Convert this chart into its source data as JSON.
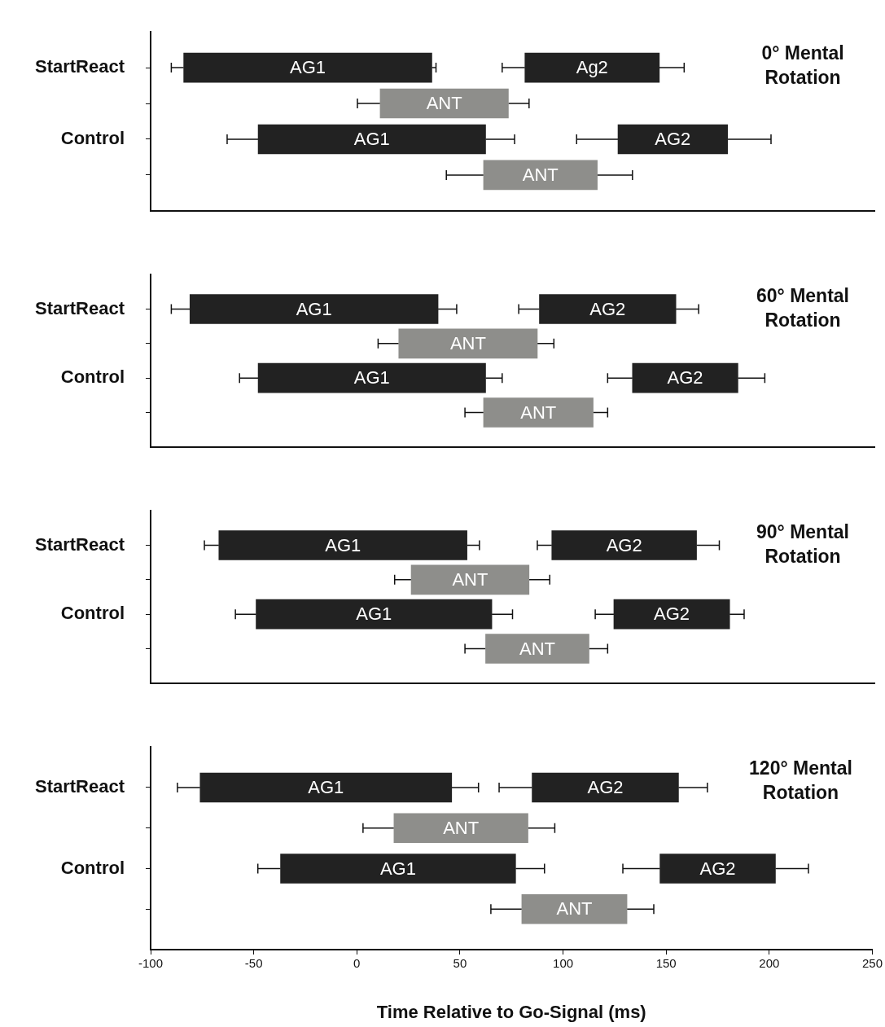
{
  "chart_data": [
    {
      "type": "bar",
      "orientation": "horizontal",
      "title": "0° Mental Rotation",
      "categories": [
        "StartReact",
        null,
        "Control",
        null
      ],
      "xlim": [
        -100,
        250
      ],
      "xticks": [
        -100,
        -50,
        0,
        50,
        100,
        150,
        200,
        250
      ],
      "tick_labels": "y",
      "series": [
        {
          "color": "#222222",
          "base": [
            -84,
            null,
            -48,
            null
          ],
          "values": [
            120,
            null,
            110,
            null
          ],
          "errors": [
            [
              -90,
              38
            ],
            null,
            [
              -63,
              76
            ],
            null
          ],
          "value_labels": [
            "AG1",
            null,
            "AG1",
            null
          ]
        },
        {
          "color": "#222222",
          "base": [
            81,
            null,
            126,
            null
          ],
          "values": [
            65,
            null,
            53,
            null
          ],
          "errors": [
            [
              70,
              158
            ],
            null,
            [
              106,
              200
            ],
            null
          ],
          "value_labels": [
            "Ag2",
            null,
            "AG2",
            null
          ]
        },
        {
          "color": "#8e8e8b",
          "base": [
            null,
            11,
            null,
            61
          ],
          "values": [
            null,
            62,
            null,
            55
          ],
          "errors": [
            null,
            [
              0,
              83
            ],
            null,
            [
              43,
              133
            ]
          ],
          "value_labels": [
            null,
            "ANT",
            null,
            "ANT"
          ]
        }
      ]
    },
    {
      "type": "bar",
      "orientation": "horizontal",
      "title": "60° Mental Rotation",
      "categories": [
        "StartReact",
        null,
        "Control",
        null
      ],
      "xlim": [
        -100,
        250
      ],
      "xticks": [
        -100,
        -50,
        0,
        50,
        100,
        150,
        200,
        250
      ],
      "tick_labels": "y",
      "series": [
        {
          "color": "#222222",
          "base": [
            -81,
            null,
            -48,
            null
          ],
          "values": [
            120,
            null,
            110,
            null
          ],
          "errors": [
            [
              -90,
              48
            ],
            null,
            [
              -57,
              70
            ],
            null
          ],
          "value_labels": [
            "AG1",
            null,
            "AG1",
            null
          ]
        },
        {
          "color": "#222222",
          "base": [
            88,
            null,
            133,
            null
          ],
          "values": [
            66,
            null,
            51,
            null
          ],
          "errors": [
            [
              78,
              165
            ],
            null,
            [
              121,
              197
            ],
            null
          ],
          "value_labels": [
            "AG2",
            null,
            "AG2",
            null
          ]
        },
        {
          "color": "#8e8e8b",
          "base": [
            null,
            20,
            null,
            61
          ],
          "values": [
            null,
            67,
            null,
            53
          ],
          "errors": [
            null,
            [
              10,
              95
            ],
            null,
            [
              52,
              121
            ]
          ],
          "value_labels": [
            null,
            "ANT",
            null,
            "ANT"
          ]
        }
      ]
    },
    {
      "type": "bar",
      "orientation": "horizontal",
      "title": "90° Mental Rotation",
      "categories": [
        "StartReact",
        null,
        "Control",
        null
      ],
      "xlim": [
        -100,
        250
      ],
      "xticks": [
        -100,
        -50,
        0,
        50,
        100,
        150,
        200,
        250
      ],
      "tick_labels": "y",
      "series": [
        {
          "color": "#222222",
          "base": [
            -67,
            null,
            -49,
            null
          ],
          "values": [
            120,
            null,
            114,
            null
          ],
          "errors": [
            [
              -74,
              59
            ],
            null,
            [
              -59,
              75
            ],
            null
          ],
          "value_labels": [
            "AG1",
            null,
            "AG1",
            null
          ]
        },
        {
          "color": "#222222",
          "base": [
            94,
            null,
            124,
            null
          ],
          "values": [
            70,
            null,
            56,
            null
          ],
          "errors": [
            [
              87,
              175
            ],
            null,
            [
              115,
              187
            ],
            null
          ],
          "value_labels": [
            "AG2",
            null,
            "AG2",
            null
          ]
        },
        {
          "color": "#8e8e8b",
          "base": [
            null,
            26,
            null,
            62
          ],
          "values": [
            null,
            57,
            null,
            50
          ],
          "errors": [
            null,
            [
              18,
              93
            ],
            null,
            [
              52,
              121
            ]
          ],
          "value_labels": [
            null,
            "ANT",
            null,
            "ANT"
          ]
        }
      ]
    },
    {
      "type": "bar",
      "orientation": "horizontal",
      "title": "120° Mental Rotation",
      "xlabel": "Time Relative to Go-Signal (ms)",
      "categories": [
        "StartReact",
        null,
        "Control",
        null
      ],
      "xlim": [
        -100,
        250
      ],
      "xticks": [
        -100,
        -50,
        0,
        50,
        100,
        150,
        200,
        250
      ],
      "series": [
        {
          "color": "#222222",
          "base": [
            -76,
            null,
            -37,
            null
          ],
          "values": [
            122,
            null,
            114,
            null
          ],
          "errors": [
            [
              -87,
              59
            ],
            null,
            [
              -48,
              91
            ],
            null
          ],
          "value_labels": [
            "AG1",
            null,
            "AG1",
            null
          ]
        },
        {
          "color": "#222222",
          "base": [
            85,
            null,
            147,
            null
          ],
          "values": [
            71,
            null,
            56,
            null
          ],
          "errors": [
            [
              69,
              170
            ],
            null,
            [
              129,
              219
            ],
            null
          ],
          "value_labels": [
            "AG2",
            null,
            "AG2",
            null
          ]
        },
        {
          "color": "#8e8e8b",
          "base": [
            null,
            18,
            null,
            80
          ],
          "values": [
            null,
            65,
            null,
            51
          ],
          "errors": [
            null,
            [
              3,
              96
            ],
            null,
            [
              65,
              144
            ]
          ],
          "value_labels": [
            null,
            "ANT",
            null,
            "ANT"
          ]
        }
      ]
    }
  ]
}
